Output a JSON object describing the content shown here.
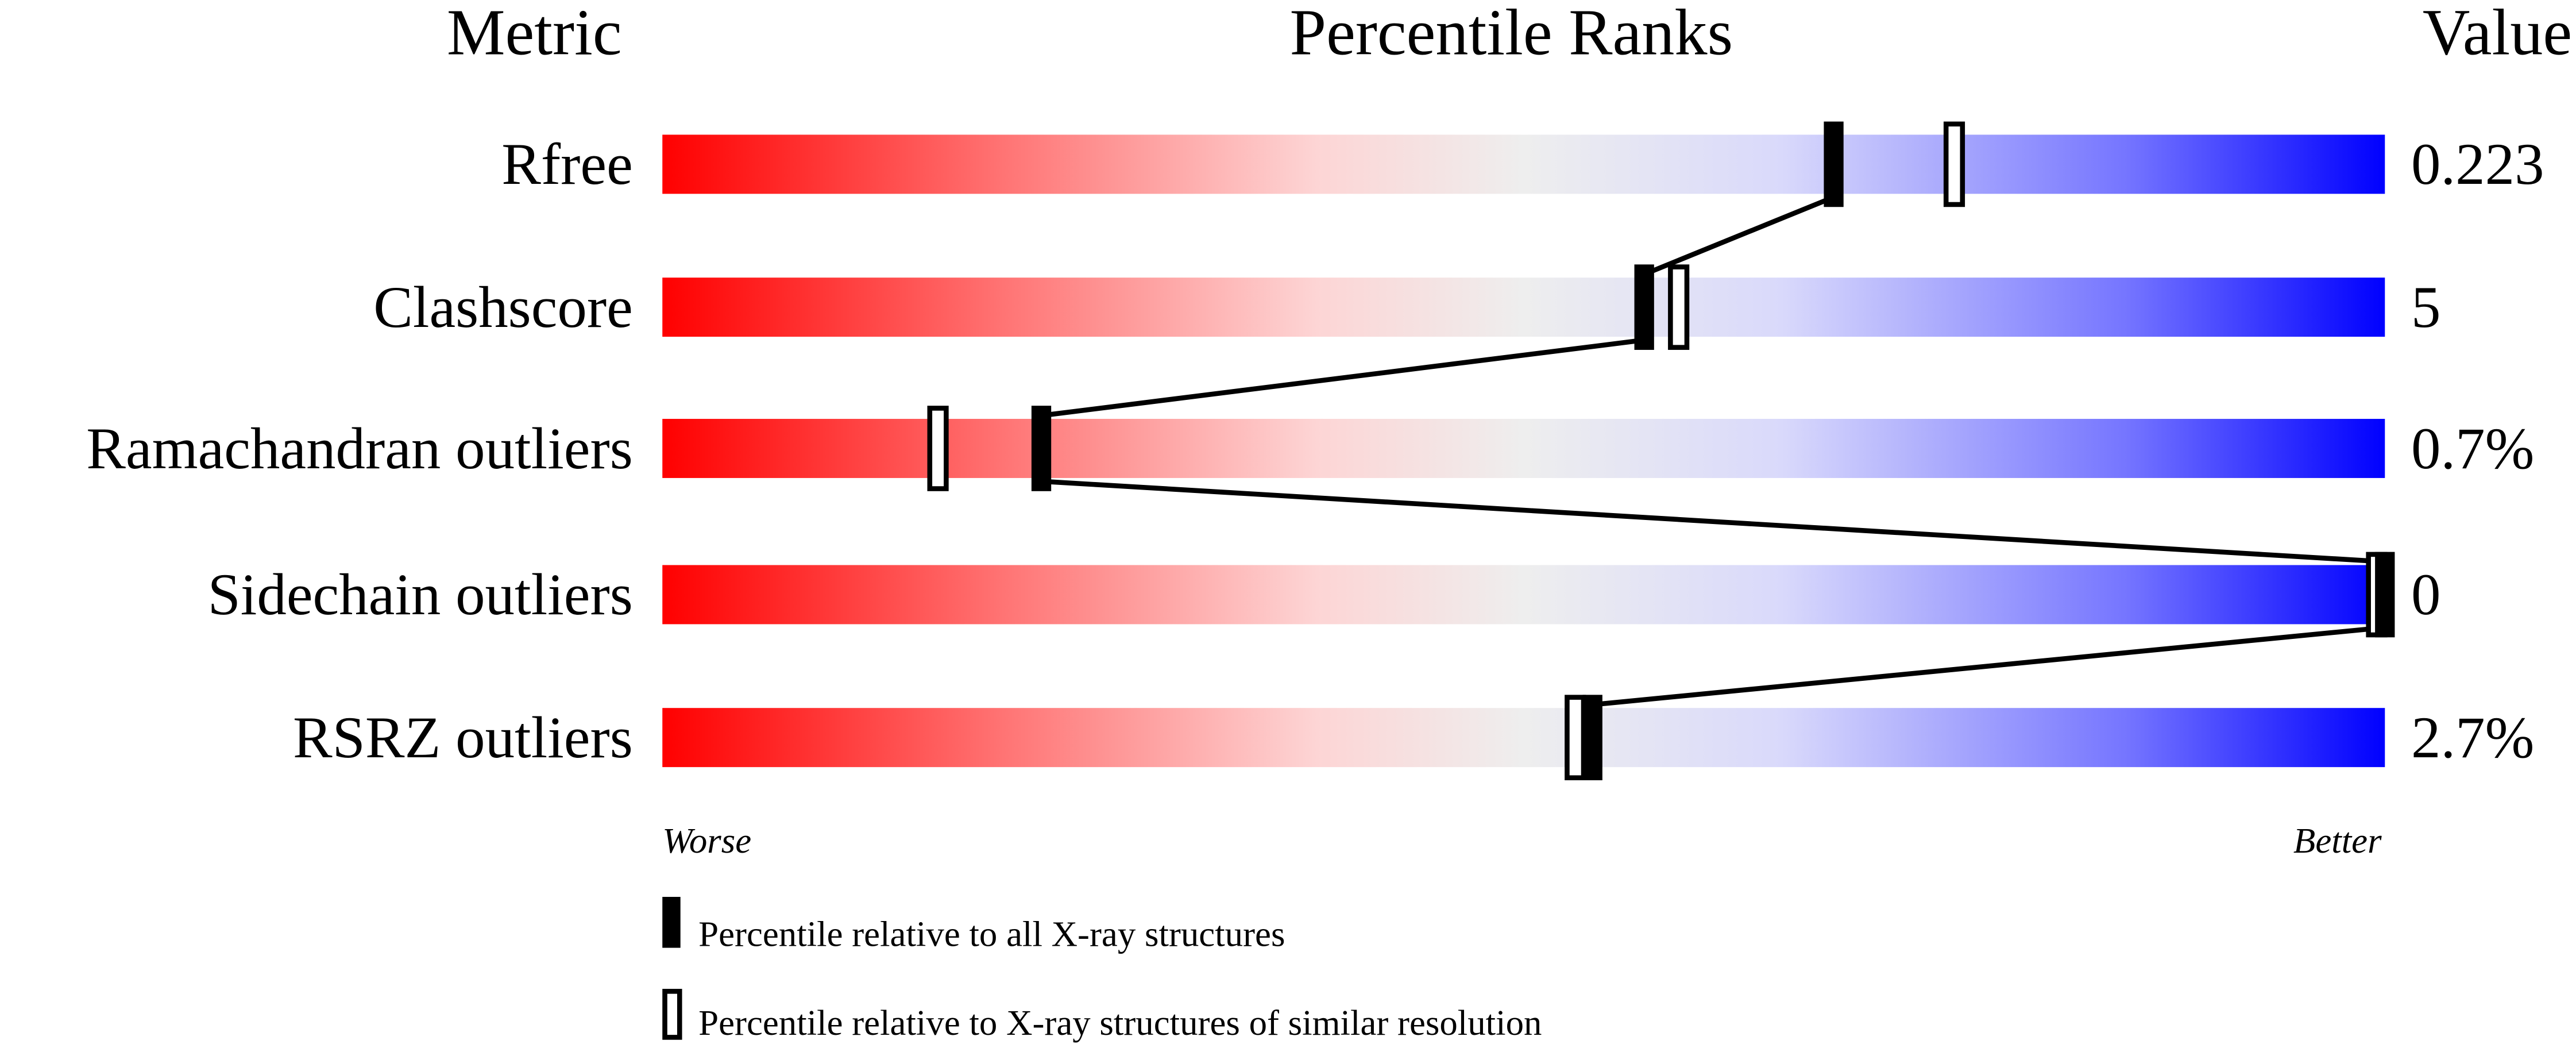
{
  "chart_data": {
    "type": "percentile-slider",
    "headers": {
      "metric": "Metric",
      "ranks": "Percentile Ranks",
      "value": "Value"
    },
    "xlim": [
      0,
      100
    ],
    "metrics": [
      {
        "name": "Rfree",
        "value": "0.223",
        "percentile_all": 68,
        "percentile_similar": 75
      },
      {
        "name": "Clashscore",
        "value": "5",
        "percentile_all": 57,
        "percentile_similar": 59
      },
      {
        "name": "Ramachandran outliers",
        "value": "0.7%",
        "percentile_all": 22,
        "percentile_similar": 16
      },
      {
        "name": "Sidechain outliers",
        "value": "0",
        "percentile_all": 100,
        "percentile_similar": 100
      },
      {
        "name": "RSRZ outliers",
        "value": "2.7%",
        "percentile_all": 54,
        "percentile_similar": 53
      }
    ],
    "axis_labels": {
      "worse": "Worse",
      "better": "Better"
    },
    "legend": {
      "all": "Percentile relative to all X-ray structures",
      "similar": "Percentile relative to X-ray structures of similar resolution"
    },
    "colors": {
      "worse": "#ff0000",
      "middle": "#eeeeee",
      "better": "#0000ff",
      "marker": "#000000"
    }
  }
}
